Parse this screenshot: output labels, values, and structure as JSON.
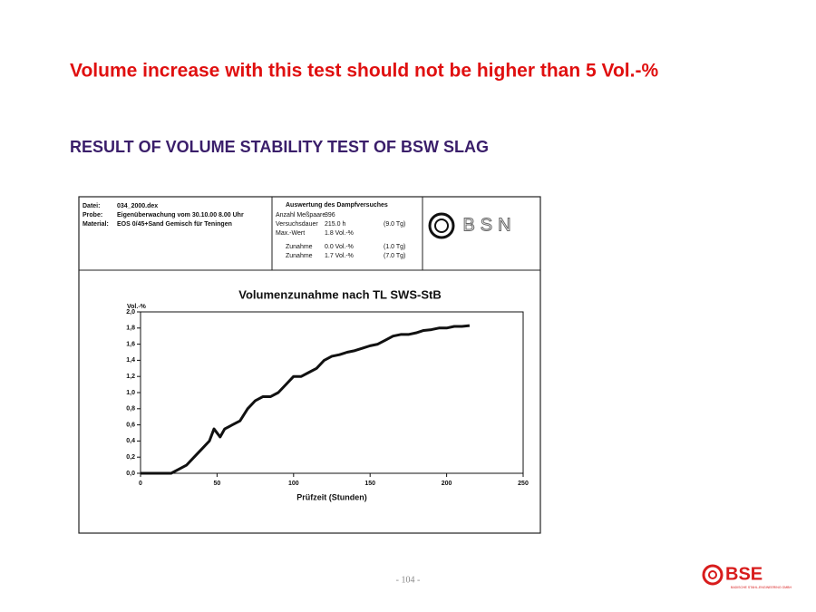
{
  "slide": {
    "headline": "Volume increase with this test should not be higher than 5 Vol.-%",
    "subtitle": "RESULT OF VOLUME STABILITY TEST OF BSW SLAG",
    "page_number": "- 104 -",
    "logo": "BSE",
    "logo_caption": "BADISCHE STAHL-ENGINEERING GMBH"
  },
  "report_header": {
    "info": [
      [
        "Datei:",
        "034_2000.dex"
      ],
      [
        "Probe:",
        "Eigenüberwachung vom 30.10.00 8.00 Uhr"
      ],
      [
        "Material:",
        "EOS 0/45+Sand Gemisch für Teningen"
      ]
    ],
    "evaluation_title": "Auswertung des Dampfversuches",
    "evaluation": [
      [
        "Anzahl Meßpaare",
        "396",
        ""
      ],
      [
        "Versuchsdauer",
        "215.0 h",
        "(9.0 Tg)"
      ],
      [
        "Max.-Wert",
        "1.8 Vol.-%",
        ""
      ],
      [
        "Zunahme",
        "0.0 Vol.-%",
        "(1.0 Tg)"
      ],
      [
        "Zunahme",
        "1.7 Vol.-%",
        "(7.0 Tg)"
      ]
    ],
    "lab_logo": "BSN"
  },
  "chart_data": {
    "type": "line",
    "title": "Volumenzunahme nach TL SWS-StB",
    "y_label": "Vol.-%",
    "x_label": "Prüfzeit (Stunden)",
    "x": [
      0,
      10,
      20,
      25,
      30,
      35,
      40,
      45,
      48,
      52,
      55,
      60,
      65,
      70,
      75,
      80,
      85,
      90,
      95,
      100,
      105,
      110,
      115,
      120,
      125,
      130,
      135,
      140,
      145,
      150,
      155,
      160,
      165,
      170,
      175,
      180,
      185,
      190,
      195,
      200,
      205,
      210,
      215
    ],
    "series": [
      {
        "name": "Volumenzunahme",
        "color": "#111111",
        "values": [
          0,
          0,
          0,
          0.05,
          0.1,
          0.2,
          0.3,
          0.4,
          0.55,
          0.45,
          0.55,
          0.6,
          0.65,
          0.8,
          0.9,
          0.95,
          0.95,
          1.0,
          1.1,
          1.2,
          1.2,
          1.25,
          1.3,
          1.4,
          1.45,
          1.47,
          1.5,
          1.52,
          1.55,
          1.58,
          1.6,
          1.65,
          1.7,
          1.72,
          1.72,
          1.74,
          1.77,
          1.78,
          1.8,
          1.8,
          1.82,
          1.82,
          1.83
        ]
      }
    ],
    "xlim": [
      0,
      250
    ],
    "ylim": [
      0,
      2
    ],
    "xticks": [
      0,
      50,
      100,
      150,
      200,
      250
    ],
    "yticks": [
      {
        "value": 0,
        "label": "0,0"
      },
      {
        "value": 0.2,
        "label": "0,2"
      },
      {
        "value": 0.4,
        "label": "0,4"
      },
      {
        "value": 0.6,
        "label": "0,6"
      },
      {
        "value": 0.8,
        "label": "0,8"
      },
      {
        "value": 1,
        "label": "1,0"
      },
      {
        "value": 1.2,
        "label": "1,2"
      },
      {
        "value": 1.4,
        "label": "1,4"
      },
      {
        "value": 1.6,
        "label": "1,6"
      },
      {
        "value": 1.8,
        "label": "1,8"
      },
      {
        "value": 2,
        "label": "2,0"
      }
    ]
  }
}
